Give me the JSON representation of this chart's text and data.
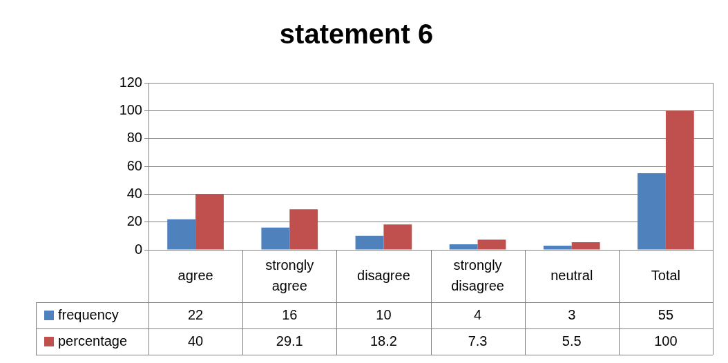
{
  "chart_data": {
    "type": "bar",
    "title": "statement 6",
    "categories": [
      "agree",
      "strongly agree",
      "disagree",
      "strongly disagree",
      "neutral",
      "Total"
    ],
    "series": [
      {
        "name": "frequency",
        "color": "#4f81bd",
        "values": [
          22,
          16,
          10,
          4,
          3,
          55
        ]
      },
      {
        "name": "percentage",
        "color": "#c0504d",
        "values": [
          40,
          29.1,
          18.2,
          7.3,
          5.5,
          100
        ]
      }
    ],
    "ylim": [
      0,
      120
    ],
    "yticks": [
      0,
      20,
      40,
      60,
      80,
      100,
      120
    ],
    "grid": "y",
    "legend": "bottom left",
    "data_labels": true
  }
}
